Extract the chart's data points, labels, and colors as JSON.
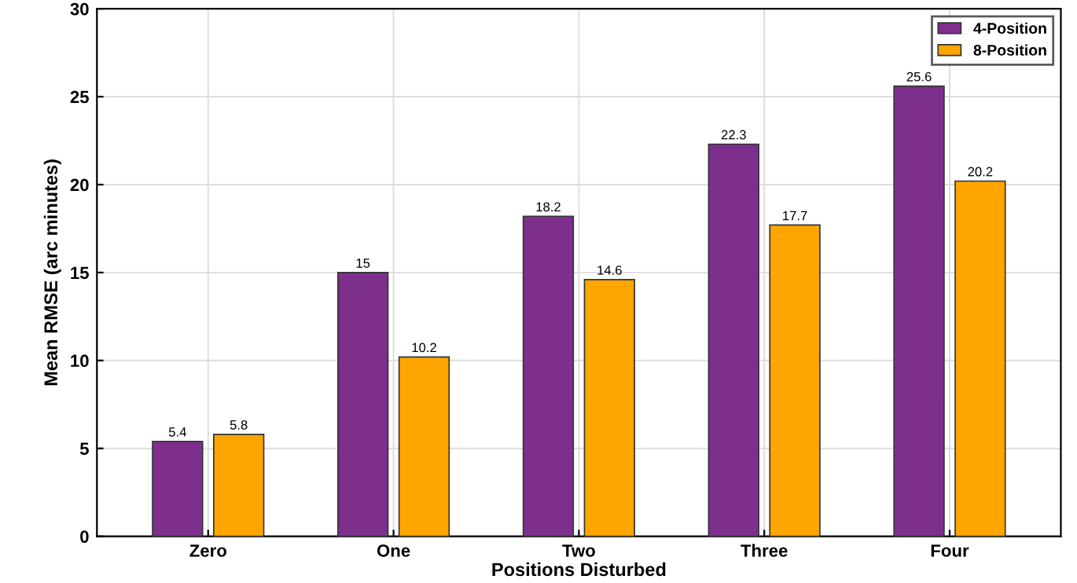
{
  "chart_data": {
    "type": "bar",
    "xlabel": "Positions Disturbed",
    "ylabel": "Mean RMSE (arc minutes)",
    "categories": [
      "Zero",
      "One",
      "Two",
      "Three",
      "Four"
    ],
    "series": [
      {
        "name": "4-Position",
        "color": "#7e2f8e",
        "values": [
          5.4,
          15,
          18.2,
          22.3,
          25.6
        ]
      },
      {
        "name": "8-Position",
        "color": "#ffa500",
        "values": [
          5.8,
          10.2,
          14.6,
          17.7,
          20.2
        ]
      }
    ],
    "ylim": [
      0,
      30
    ],
    "yticks": [
      0,
      5,
      10,
      15,
      20,
      25,
      30
    ],
    "grid": true,
    "legend": "top right",
    "data_labels": true
  }
}
